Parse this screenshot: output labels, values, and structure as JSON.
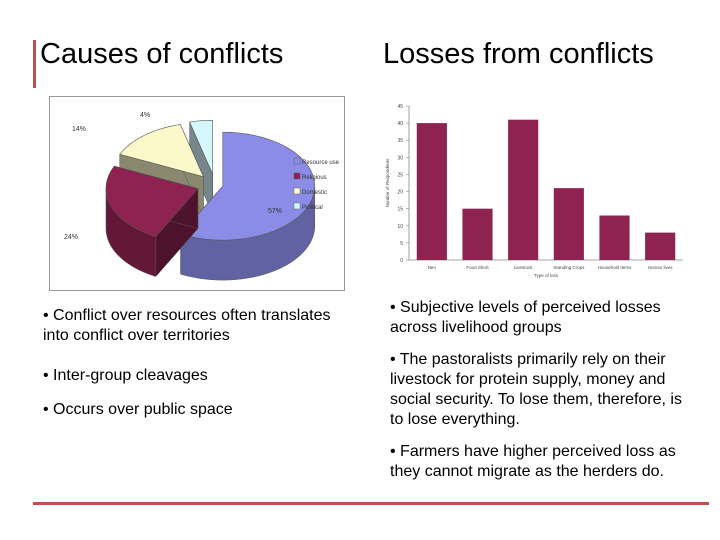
{
  "titles": {
    "left": "Causes of conflicts",
    "right": "Losses from conflicts"
  },
  "accent_color": "#c0504d",
  "chart_data": [
    {
      "type": "pie",
      "style": "3d-exploded",
      "categories": [
        "Resource use",
        "Religious",
        "Domestic",
        "Political"
      ],
      "values": [
        57,
        24,
        14,
        4
      ],
      "data_labels": [
        "57%",
        "24%",
        "14%",
        "4%"
      ],
      "colors": [
        "#8a8ce6",
        "#8e2250",
        "#fbf8c9",
        "#d5f6fb"
      ],
      "legend_placement": "right"
    },
    {
      "type": "bar",
      "categories": [
        "Nen",
        "Food Short",
        "Livestock",
        "Standing Crops",
        "Household Items",
        "Human lives"
      ],
      "values": [
        40,
        15,
        41,
        21,
        13,
        8
      ],
      "ylabel": "Number of Respondents",
      "xlabel": "Type of loss",
      "ylim": [
        0,
        45
      ],
      "yticks": [
        0,
        5,
        10,
        15,
        20,
        25,
        30,
        35,
        40,
        45
      ],
      "color": "#8e2250",
      "grid": false
    }
  ],
  "left_bullets": [
    "• Conflict over resources often translates into conflict over territories",
    "• Inter-group cleavages",
    "• Occurs over public space"
  ],
  "right_bullets": [
    "• Subjective levels of perceived losses across livelihood groups",
    "• The pastoralists primarily rely on their livestock for protein supply, money and social security. To lose them, therefore, is to lose everything.",
    "• Farmers have higher perceived loss as they cannot migrate as the herders do."
  ]
}
